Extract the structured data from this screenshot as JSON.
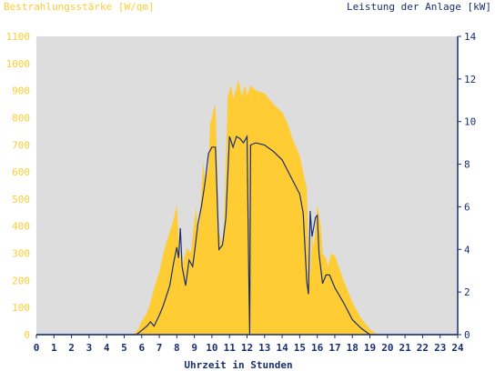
{
  "chart_data": {
    "type": "area",
    "title_left": "Bestrahlungsstärke [W/qm]",
    "title_right": "Leistung der Anlage [kW]",
    "xlabel": "Uhrzeit in Stunden",
    "x_ticks": [
      "0",
      "1",
      "2",
      "3",
      "4",
      "5",
      "6",
      "7",
      "8",
      "9",
      "10",
      "11",
      "12",
      "13",
      "14",
      "15",
      "16",
      "17",
      "18",
      "19",
      "20",
      "21",
      "22",
      "23",
      "24"
    ],
    "xlim": [
      0,
      24
    ],
    "left_axis": {
      "ylim": [
        0,
        1100
      ],
      "ticks": [
        "0",
        "100",
        "200",
        "300",
        "400",
        "500",
        "600",
        "700",
        "800",
        "900",
        "1000",
        "1100"
      ]
    },
    "right_axis": {
      "ylim": [
        0,
        14
      ],
      "ticks": [
        "0",
        "2",
        "4",
        "6",
        "8",
        "10",
        "12",
        "14"
      ]
    },
    "grid": false,
    "colors": {
      "plot_background": "#dddddd",
      "irradiance": "#ffcc33",
      "power": "#1a2f6e",
      "left_axis_text": "#ffcc33",
      "right_axis_text": "#1a2f6e",
      "axis": "#1a2f6e"
    },
    "series": [
      {
        "axis": "left",
        "style": "area",
        "x": [
          0,
          5.5,
          5.8,
          6.0,
          6.3,
          6.5,
          6.7,
          7.0,
          7.2,
          7.4,
          7.6,
          7.8,
          8.0,
          8.1,
          8.2,
          8.3,
          8.4,
          8.6,
          8.8,
          9.0,
          9.1,
          9.2,
          9.3,
          9.5,
          9.6,
          9.8,
          9.9,
          10.0,
          10.1,
          10.2,
          10.4,
          10.6,
          10.7,
          10.9,
          11.0,
          11.1,
          11.2,
          11.4,
          11.5,
          11.7,
          11.8,
          11.9,
          12.0,
          12.1,
          12.2,
          12.5,
          13.0,
          13.5,
          14.0,
          14.3,
          14.6,
          15.0,
          15.2,
          15.4,
          15.5,
          15.6,
          15.7,
          15.8,
          16.0,
          16.1,
          16.2,
          16.3,
          16.5,
          16.6,
          16.8,
          17.0,
          17.5,
          18.0,
          18.5,
          19.0,
          19.2,
          19.5,
          20,
          24
        ],
        "values": [
          0,
          0,
          20,
          50,
          80,
          120,
          170,
          230,
          290,
          340,
          380,
          420,
          480,
          350,
          300,
          250,
          280,
          320,
          300,
          420,
          470,
          380,
          420,
          640,
          560,
          620,
          780,
          800,
          830,
          850,
          380,
          330,
          420,
          880,
          900,
          920,
          870,
          910,
          940,
          880,
          900,
          920,
          880,
          900,
          920,
          900,
          890,
          850,
          820,
          780,
          720,
          660,
          600,
          540,
          300,
          200,
          380,
          320,
          480,
          440,
          400,
          300,
          280,
          250,
          300,
          290,
          200,
          120,
          60,
          20,
          10,
          0,
          0,
          0
        ]
      },
      {
        "axis": "right",
        "style": "line",
        "x": [
          0,
          5.7,
          6.0,
          6.3,
          6.5,
          6.7,
          7.0,
          7.2,
          7.4,
          7.6,
          7.8,
          8.0,
          8.1,
          8.2,
          8.3,
          8.5,
          8.7,
          8.9,
          9.0,
          9.2,
          9.4,
          9.6,
          9.8,
          10.0,
          10.2,
          10.4,
          10.6,
          10.8,
          11.0,
          11.2,
          11.4,
          11.6,
          11.8,
          12.0,
          12.1,
          12.15,
          12.2,
          12.5,
          13.0,
          13.5,
          14.0,
          14.5,
          15.0,
          15.2,
          15.4,
          15.5,
          15.6,
          15.7,
          15.9,
          16.0,
          16.1,
          16.3,
          16.5,
          16.7,
          17.0,
          17.5,
          18.0,
          18.5,
          19.0,
          19.5,
          20,
          24
        ],
        "values": [
          0,
          0,
          0.2,
          0.4,
          0.6,
          0.4,
          0.9,
          1.3,
          1.8,
          2.3,
          3.3,
          4.1,
          3.6,
          5.0,
          3.2,
          2.3,
          3.5,
          3.2,
          3.8,
          5.2,
          6.0,
          7.1,
          8.5,
          8.8,
          8.8,
          4.0,
          4.2,
          5.5,
          9.3,
          8.8,
          9.3,
          9.2,
          9.0,
          9.3,
          2.8,
          0,
          8.9,
          9.0,
          8.9,
          8.6,
          8.2,
          7.4,
          6.6,
          5.7,
          2.5,
          1.9,
          5.8,
          4.6,
          5.5,
          5.6,
          3.8,
          2.4,
          2.8,
          2.8,
          2.2,
          1.5,
          0.7,
          0.3,
          0,
          0,
          0,
          0
        ]
      }
    ]
  }
}
